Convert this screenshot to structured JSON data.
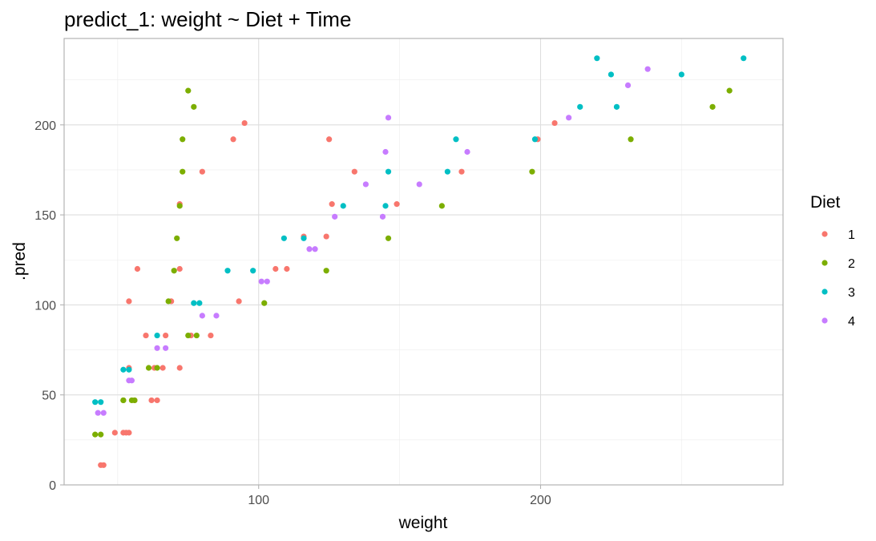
{
  "chart_data": {
    "type": "scatter",
    "title": "predict_1: weight ~ Diet + Time",
    "xlabel": "weight",
    "ylabel": ".pred",
    "xlim": [
      31,
      286
    ],
    "ylim": [
      0,
      248
    ],
    "x_ticks": [
      100,
      200
    ],
    "y_ticks": [
      0,
      50,
      100,
      150,
      200
    ],
    "grid": true,
    "legend_title": "Diet",
    "legend_position": "right",
    "series": [
      {
        "name": "1",
        "color": "#F8766D",
        "points": [
          [
            44,
            11
          ],
          [
            45,
            11
          ],
          [
            49,
            29
          ],
          [
            52,
            29
          ],
          [
            53,
            29
          ],
          [
            54,
            29
          ],
          [
            54,
            65
          ],
          [
            54,
            102
          ],
          [
            56,
            47
          ],
          [
            57,
            120
          ],
          [
            60,
            83
          ],
          [
            62,
            47
          ],
          [
            63,
            65
          ],
          [
            64,
            47
          ],
          [
            66,
            65
          ],
          [
            67,
            83
          ],
          [
            69,
            102
          ],
          [
            72,
            120
          ],
          [
            72,
            156
          ],
          [
            72,
            65
          ],
          [
            76,
            83
          ],
          [
            80,
            174
          ],
          [
            83,
            83
          ],
          [
            91,
            192
          ],
          [
            93,
            102
          ],
          [
            95,
            201
          ],
          [
            106,
            120
          ],
          [
            110,
            120
          ],
          [
            116,
            138
          ],
          [
            124,
            138
          ],
          [
            125,
            192
          ],
          [
            126,
            156
          ],
          [
            134,
            174
          ],
          [
            149,
            156
          ],
          [
            172,
            174
          ],
          [
            199,
            192
          ],
          [
            205,
            201
          ]
        ]
      },
      {
        "name": "2",
        "color": "#7CAE00",
        "points": [
          [
            42,
            28
          ],
          [
            44,
            28
          ],
          [
            52,
            47
          ],
          [
            52,
            47
          ],
          [
            55,
            47
          ],
          [
            56,
            47
          ],
          [
            61,
            65
          ],
          [
            64,
            65
          ],
          [
            68,
            102
          ],
          [
            70,
            119
          ],
          [
            71,
            137
          ],
          [
            72,
            155
          ],
          [
            73,
            174
          ],
          [
            73,
            192
          ],
          [
            75,
            83
          ],
          [
            75,
            219
          ],
          [
            77,
            210
          ],
          [
            78,
            83
          ],
          [
            102,
            101
          ],
          [
            124,
            119
          ],
          [
            146,
            137
          ],
          [
            165,
            155
          ],
          [
            197,
            174
          ],
          [
            232,
            192
          ],
          [
            261,
            210
          ],
          [
            267,
            219
          ]
        ]
      },
      {
        "name": "3",
        "color": "#00BFC4",
        "points": [
          [
            42,
            46
          ],
          [
            44,
            46
          ],
          [
            52,
            64
          ],
          [
            54,
            64
          ],
          [
            64,
            83
          ],
          [
            77,
            101
          ],
          [
            79,
            101
          ],
          [
            89,
            119
          ],
          [
            98,
            119
          ],
          [
            109,
            137
          ],
          [
            116,
            137
          ],
          [
            130,
            155
          ],
          [
            145,
            155
          ],
          [
            146,
            174
          ],
          [
            167,
            174
          ],
          [
            170,
            192
          ],
          [
            198,
            192
          ],
          [
            214,
            210
          ],
          [
            220,
            237
          ],
          [
            225,
            228
          ],
          [
            227,
            210
          ],
          [
            250,
            228
          ],
          [
            272,
            237
          ]
        ]
      },
      {
        "name": "4",
        "color": "#C77CFF",
        "points": [
          [
            43,
            40
          ],
          [
            45,
            40
          ],
          [
            54,
            58
          ],
          [
            55,
            58
          ],
          [
            64,
            76
          ],
          [
            67,
            76
          ],
          [
            80,
            94
          ],
          [
            85,
            94
          ],
          [
            101,
            113
          ],
          [
            103,
            113
          ],
          [
            118,
            131
          ],
          [
            120,
            131
          ],
          [
            127,
            149
          ],
          [
            138,
            167
          ],
          [
            144,
            149
          ],
          [
            145,
            185
          ],
          [
            146,
            204
          ],
          [
            157,
            167
          ],
          [
            174,
            185
          ],
          [
            210,
            204
          ],
          [
            231,
            222
          ],
          [
            238,
            231
          ]
        ]
      }
    ]
  }
}
